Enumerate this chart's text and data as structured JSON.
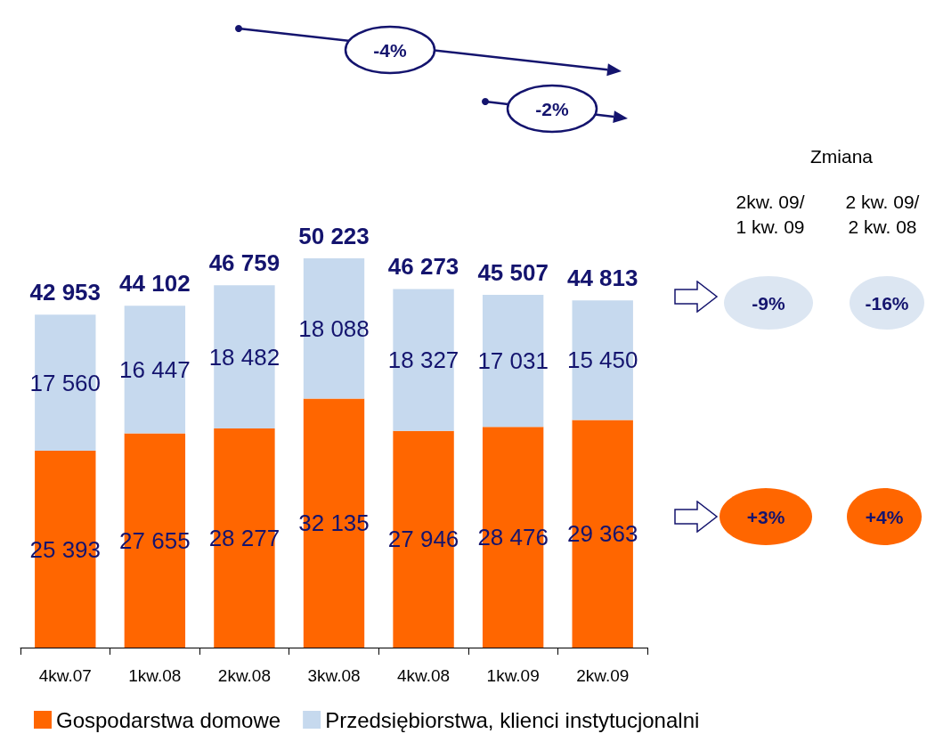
{
  "chart_data": {
    "type": "bar",
    "stacked": true,
    "data_labels": true,
    "legend": "bottom",
    "categories": [
      "4kw.07",
      "1kw.08",
      "2kw.08",
      "3kw.08",
      "4kw.08",
      "1kw.09",
      "2kw.09"
    ],
    "series": [
      {
        "name": "Gospodarstwa domowe",
        "color": "#ff6600",
        "values": [
          25393,
          27655,
          28277,
          32135,
          27946,
          28476,
          29363
        ]
      },
      {
        "name": "Przedsiębiorstwa, klienci instytucjonalni",
        "color": "#c6d9ee",
        "values": [
          17560,
          16447,
          18482,
          18088,
          18327,
          17031,
          15450
        ]
      }
    ],
    "totals": [
      "42 953",
      "44 102",
      "46 759",
      "50 223",
      "46 273",
      "45 507",
      "44 813"
    ],
    "annotations": [
      "-4%",
      "-2%",
      "Zmiana",
      "2kw. 09/\n1 kw. 09",
      "2 kw. 09/\n2 kw. 08",
      "-9%",
      "-16%",
      "+3%",
      "+4%"
    ]
  }
}
